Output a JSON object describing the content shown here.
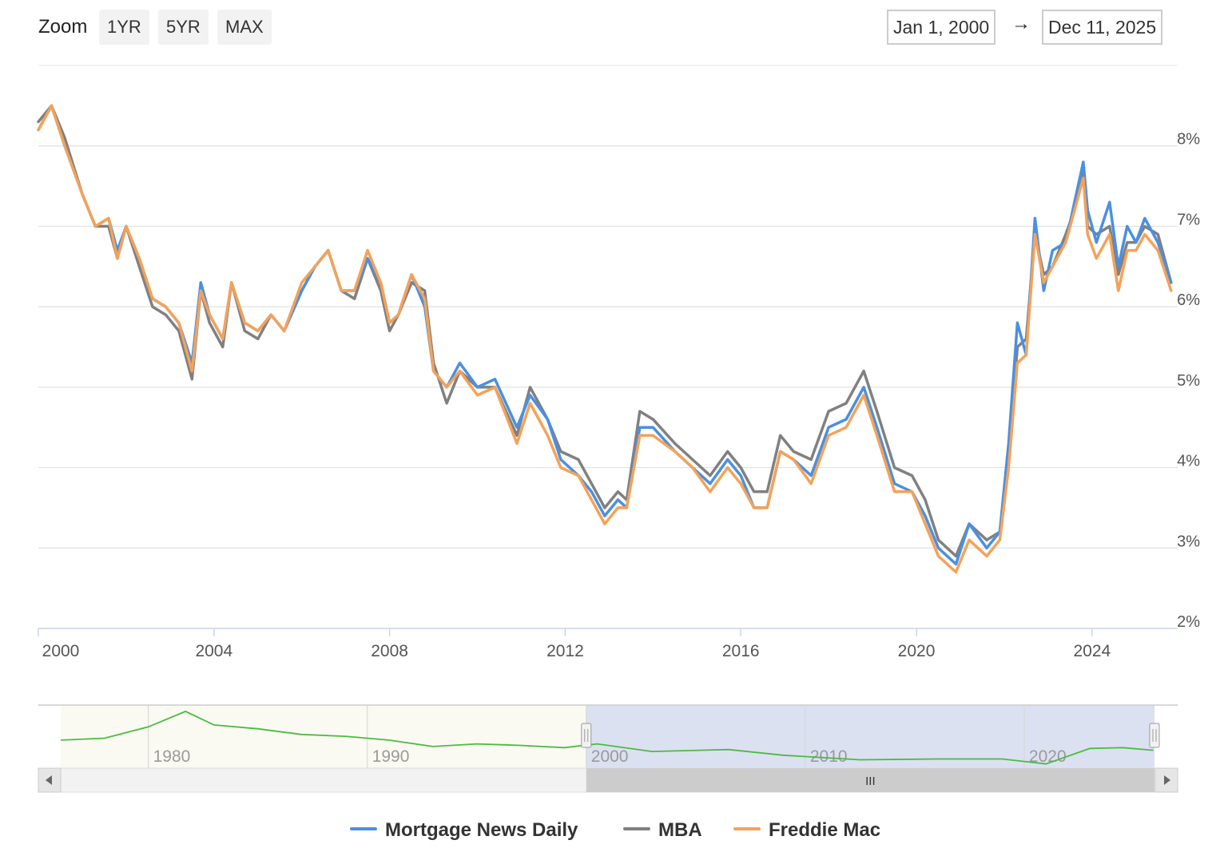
{
  "toolbar": {
    "zoom_label": "Zoom",
    "buttons": [
      "1YR",
      "5YR",
      "MAX"
    ],
    "date_from": "Jan 1, 2000",
    "date_arrow": "→",
    "date_to": "Dec 11, 2025"
  },
  "navigator": {
    "year_labels": [
      "1980",
      "1990",
      "2000",
      "2010",
      "2020"
    ],
    "scrollbar_grip": "III",
    "colors": {
      "series": "#4cbb3f",
      "selected_fill": "#dbe1f1",
      "outside_fill": "#fafaf2"
    }
  },
  "legend": [
    {
      "name": "Mortgage News Daily",
      "color": "#4a90e2"
    },
    {
      "name": "MBA",
      "color": "#808080"
    },
    {
      "name": "Freddie Mac",
      "color": "#f4a259"
    }
  ],
  "chart_data": {
    "type": "line",
    "x_range": [
      "2000-01-01",
      "2025-12-11"
    ],
    "ylim": [
      2,
      8.5
    ],
    "y_ticks": [
      "2%",
      "3%",
      "4%",
      "5%",
      "6%",
      "7%",
      "8%"
    ],
    "x_ticks": [
      "2000",
      "2004",
      "2008",
      "2012",
      "2016",
      "2020",
      "2024"
    ],
    "grid": true,
    "legend_position": "bottom",
    "base_x": [
      2000.0,
      2000.3,
      2000.6,
      2001.0,
      2001.3,
      2001.6,
      2001.8,
      2002.0,
      2002.3,
      2002.6,
      2002.9,
      2003.2,
      2003.5,
      2003.7,
      2003.9,
      2004.2,
      2004.4,
      2004.7,
      2005.0,
      2005.3,
      2005.6,
      2006.0,
      2006.3,
      2006.6,
      2006.9,
      2007.2,
      2007.5,
      2007.8,
      2008.0,
      2008.2,
      2008.5,
      2008.8,
      2009.0,
      2009.3,
      2009.6,
      2010.0,
      2010.4,
      2010.9,
      2011.2,
      2011.6,
      2011.9,
      2012.3,
      2012.6,
      2012.9,
      2013.2,
      2013.4,
      2013.7,
      2014.0,
      2014.5,
      2014.9,
      2015.3,
      2015.7,
      2016.0,
      2016.3,
      2016.6,
      2016.9,
      2017.2,
      2017.6,
      2018.0,
      2018.4,
      2018.8,
      2019.1,
      2019.5,
      2019.9,
      2020.2,
      2020.5,
      2020.9,
      2021.2,
      2021.6,
      2021.9,
      2022.1,
      2022.3,
      2022.5,
      2022.7,
      2022.9,
      2023.1,
      2023.4,
      2023.6,
      2023.8,
      2023.9,
      2024.1,
      2024.4,
      2024.6,
      2024.8,
      2025.0,
      2025.2,
      2025.5,
      2025.8
    ],
    "series": [
      {
        "name": "Mortgage News Daily",
        "color": "#4a90e2",
        "values": [
          8.2,
          8.5,
          8.0,
          7.4,
          7.0,
          7.1,
          6.7,
          7.0,
          6.6,
          6.1,
          6.0,
          5.8,
          5.3,
          6.3,
          5.9,
          5.6,
          6.3,
          5.8,
          5.7,
          5.9,
          5.7,
          6.2,
          6.5,
          6.7,
          6.2,
          6.2,
          6.6,
          6.3,
          5.8,
          5.9,
          6.4,
          6.0,
          5.2,
          5.0,
          5.3,
          5.0,
          5.1,
          4.5,
          4.9,
          4.6,
          4.1,
          3.9,
          3.7,
          3.4,
          3.6,
          3.5,
          4.5,
          4.5,
          4.2,
          4.0,
          3.8,
          4.1,
          3.9,
          3.5,
          3.5,
          4.2,
          4.1,
          3.9,
          4.5,
          4.6,
          5.0,
          4.5,
          3.8,
          3.7,
          3.4,
          3.0,
          2.8,
          3.3,
          3.0,
          3.2,
          4.3,
          5.8,
          5.4,
          7.1,
          6.2,
          6.7,
          6.8,
          7.3,
          7.8,
          7.2,
          6.8,
          7.3,
          6.5,
          7.0,
          6.8,
          7.1,
          6.8,
          6.3
        ]
      },
      {
        "name": "MBA",
        "color": "#808080",
        "values": [
          8.3,
          8.5,
          8.1,
          7.4,
          7.0,
          7.0,
          6.6,
          7.0,
          6.5,
          6.0,
          5.9,
          5.7,
          5.1,
          6.2,
          5.8,
          5.5,
          6.3,
          5.7,
          5.6,
          5.9,
          5.7,
          6.2,
          6.5,
          6.7,
          6.2,
          6.1,
          6.6,
          6.2,
          5.7,
          5.9,
          6.3,
          6.2,
          5.3,
          4.8,
          5.2,
          5.0,
          5.0,
          4.4,
          5.0,
          4.6,
          4.2,
          4.1,
          3.8,
          3.5,
          3.7,
          3.6,
          4.7,
          4.6,
          4.3,
          4.1,
          3.9,
          4.2,
          4.0,
          3.7,
          3.7,
          4.4,
          4.2,
          4.1,
          4.7,
          4.8,
          5.2,
          4.7,
          4.0,
          3.9,
          3.6,
          3.1,
          2.9,
          3.3,
          3.1,
          3.2,
          4.1,
          5.5,
          5.6,
          6.9,
          6.4,
          6.5,
          6.9,
          7.2,
          7.7,
          7.0,
          6.9,
          7.0,
          6.4,
          6.8,
          6.8,
          7.0,
          6.9,
          6.3
        ]
      },
      {
        "name": "Freddie Mac",
        "color": "#f4a259",
        "values": [
          8.2,
          8.5,
          8.0,
          7.4,
          7.0,
          7.1,
          6.6,
          7.0,
          6.6,
          6.1,
          6.0,
          5.8,
          5.2,
          6.2,
          5.9,
          5.6,
          6.3,
          5.8,
          5.7,
          5.9,
          5.7,
          6.3,
          6.5,
          6.7,
          6.2,
          6.2,
          6.7,
          6.3,
          5.8,
          5.9,
          6.4,
          6.1,
          5.2,
          5.0,
          5.2,
          4.9,
          5.0,
          4.3,
          4.8,
          4.4,
          4.0,
          3.9,
          3.6,
          3.3,
          3.5,
          3.5,
          4.4,
          4.4,
          4.2,
          4.0,
          3.7,
          4.0,
          3.8,
          3.5,
          3.5,
          4.2,
          4.1,
          3.8,
          4.4,
          4.5,
          4.9,
          4.4,
          3.7,
          3.7,
          3.3,
          2.9,
          2.7,
          3.1,
          2.9,
          3.1,
          4.0,
          5.3,
          5.4,
          6.9,
          6.3,
          6.5,
          6.8,
          7.2,
          7.6,
          6.9,
          6.6,
          6.9,
          6.2,
          6.7,
          6.7,
          6.9,
          6.7,
          6.2
        ]
      }
    ]
  },
  "navigator_data": {
    "x": [
      1976.0,
      1978.0,
      1980.0,
      1981.7,
      1983.0,
      1985.0,
      1987.0,
      1989.0,
      1991.0,
      1993.0,
      1995.0,
      1997.0,
      1999.0,
      2000.5,
      2003.0,
      2006.5,
      2009.0,
      2012.5,
      2016.0,
      2019.0,
      2021.0,
      2023.0,
      2024.5,
      2025.9
    ],
    "values": [
      9.0,
      9.5,
      12.5,
      16.6,
      13.0,
      12.0,
      10.5,
      10.0,
      9.0,
      7.3,
      8.0,
      7.6,
      7.0,
      8.0,
      6.0,
      6.5,
      5.0,
      3.8,
      4.0,
      4.0,
      2.7,
      6.8,
      7.0,
      6.3
    ]
  }
}
